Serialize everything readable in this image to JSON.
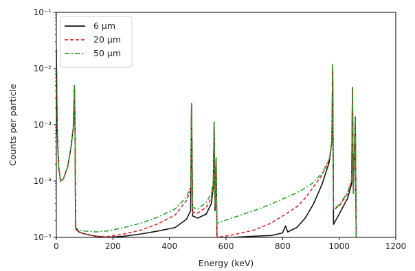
{
  "chart_data": {
    "type": "line",
    "xlabel": "Energy (keV)",
    "ylabel": "Counts per particle",
    "xlim": [
      0,
      1200
    ],
    "ylim": [
      1e-05,
      0.1
    ],
    "yscale": "log",
    "x_ticks": [
      0,
      200,
      400,
      600,
      800,
      1000,
      1200
    ],
    "x_tick_labels": [
      "0",
      "200",
      "400",
      "600",
      "800",
      "1000",
      "1200"
    ],
    "y_ticks": [
      1e-05,
      0.0001,
      0.001,
      0.01,
      0.1
    ],
    "y_tick_labels": [
      "10⁻⁵",
      "10⁻⁴",
      "10⁻³",
      "10⁻²",
      "10⁻¹"
    ],
    "legend_position": "top-left",
    "grid": false,
    "series": [
      {
        "name": "6 µm",
        "color": "#111111",
        "dash": "solid",
        "points": [
          [
            0,
            0.022
          ],
          [
            3,
            0.0009
          ],
          [
            8,
            0.00018
          ],
          [
            15,
            0.0001
          ],
          [
            25,
            0.00011
          ],
          [
            40,
            0.00018
          ],
          [
            52,
            0.0004
          ],
          [
            60,
            0.0009
          ],
          [
            64,
            0.005
          ],
          [
            66,
            0.0009
          ],
          [
            68,
            1.5e-05
          ],
          [
            80,
            1.25e-05
          ],
          [
            100,
            1.15e-05
          ],
          [
            140,
            1.05e-05
          ],
          [
            180,
            1e-05
          ],
          [
            240,
            1.05e-05
          ],
          [
            300,
            1.15e-05
          ],
          [
            360,
            1.3e-05
          ],
          [
            420,
            1.5e-05
          ],
          [
            460,
            2.1e-05
          ],
          [
            475,
            3e-05
          ],
          [
            478,
            0.0024
          ],
          [
            482,
            2.4e-05
          ],
          [
            500,
            2.2e-05
          ],
          [
            530,
            2.6e-05
          ],
          [
            548,
            4e-05
          ],
          [
            555,
            8e-05
          ],
          [
            558,
            0.0011
          ],
          [
            561,
            3e-05
          ],
          [
            565,
            0.00026
          ],
          [
            568,
            1e-05
          ],
          [
            620,
            1e-05
          ],
          [
            700,
            1.05e-05
          ],
          [
            760,
            1.08e-05
          ],
          [
            800,
            1.2e-05
          ],
          [
            810,
            1.6e-05
          ],
          [
            818,
            1.25e-05
          ],
          [
            850,
            1.5e-05
          ],
          [
            880,
            2.2e-05
          ],
          [
            910,
            4e-05
          ],
          [
            940,
            9e-05
          ],
          [
            965,
            0.00022
          ],
          [
            974,
            0.0005
          ],
          [
            977,
            0.012
          ],
          [
            980,
            1.7e-05
          ],
          [
            1000,
            2.6e-05
          ],
          [
            1030,
            5e-05
          ],
          [
            1044,
            9e-05
          ],
          [
            1047,
            0.0046
          ],
          [
            1050,
            6e-05
          ],
          [
            1057,
            0.0014
          ],
          [
            1060,
            1e-05
          ]
        ]
      },
      {
        "name": "20 µm",
        "color": "#d62728",
        "dash": "dashed",
        "points": [
          [
            0,
            0.022
          ],
          [
            3,
            0.0009
          ],
          [
            8,
            0.00018
          ],
          [
            15,
            0.0001
          ],
          [
            25,
            0.00011
          ],
          [
            40,
            0.00018
          ],
          [
            52,
            0.0004
          ],
          [
            60,
            0.0009
          ],
          [
            64,
            0.005
          ],
          [
            66,
            0.0009
          ],
          [
            68,
            1.4e-05
          ],
          [
            80,
            1.25e-05
          ],
          [
            100,
            1.15e-05
          ],
          [
            140,
            1.05e-05
          ],
          [
            180,
            1.03e-05
          ],
          [
            240,
            1.15e-05
          ],
          [
            300,
            1.35e-05
          ],
          [
            360,
            1.75e-05
          ],
          [
            420,
            2.5e-05
          ],
          [
            460,
            4.5e-05
          ],
          [
            475,
            7e-05
          ],
          [
            478,
            0.0024
          ],
          [
            482,
            2.8e-05
          ],
          [
            500,
            2.7e-05
          ],
          [
            530,
            3.4e-05
          ],
          [
            548,
            5e-05
          ],
          [
            555,
            9e-05
          ],
          [
            558,
            0.0011
          ],
          [
            561,
            3.5e-05
          ],
          [
            565,
            0.00026
          ],
          [
            568,
            1e-05
          ],
          [
            620,
            1.1e-05
          ],
          [
            700,
            1.35e-05
          ],
          [
            760,
            1.8e-05
          ],
          [
            800,
            2.4e-05
          ],
          [
            850,
            3.5e-05
          ],
          [
            880,
            5e-05
          ],
          [
            910,
            8e-05
          ],
          [
            940,
            0.00013
          ],
          [
            965,
            0.00024
          ],
          [
            974,
            0.0005
          ],
          [
            977,
            0.012
          ],
          [
            980,
            3.1e-05
          ],
          [
            1000,
            3.6e-05
          ],
          [
            1030,
            6e-05
          ],
          [
            1044,
            0.0001
          ],
          [
            1047,
            0.0046
          ],
          [
            1050,
            6e-05
          ],
          [
            1057,
            0.0014
          ],
          [
            1060,
            1e-05
          ]
        ]
      },
      {
        "name": "50 µm",
        "color": "#2ca02c",
        "dash": "dashdot",
        "points": [
          [
            0,
            0.022
          ],
          [
            3,
            0.0009
          ],
          [
            8,
            0.00018
          ],
          [
            15,
            0.0001
          ],
          [
            25,
            0.00011
          ],
          [
            40,
            0.00018
          ],
          [
            52,
            0.0004
          ],
          [
            60,
            0.0009
          ],
          [
            64,
            0.005
          ],
          [
            66,
            0.0009
          ],
          [
            68,
            1.5e-05
          ],
          [
            80,
            1.35e-05
          ],
          [
            100,
            1.3e-05
          ],
          [
            140,
            1.25e-05
          ],
          [
            180,
            1.3e-05
          ],
          [
            240,
            1.5e-05
          ],
          [
            300,
            1.8e-05
          ],
          [
            360,
            2.3e-05
          ],
          [
            420,
            3.2e-05
          ],
          [
            460,
            5.2e-05
          ],
          [
            475,
            8e-05
          ],
          [
            478,
            0.0024
          ],
          [
            482,
            3.4e-05
          ],
          [
            500,
            3.2e-05
          ],
          [
            530,
            4.2e-05
          ],
          [
            548,
            6e-05
          ],
          [
            555,
            0.0001
          ],
          [
            558,
            0.0011
          ],
          [
            561,
            4e-05
          ],
          [
            565,
            0.00026
          ],
          [
            568,
            1.8e-05
          ],
          [
            620,
            2.2e-05
          ],
          [
            700,
            3e-05
          ],
          [
            760,
            3.9e-05
          ],
          [
            800,
            4.8e-05
          ],
          [
            850,
            6.2e-05
          ],
          [
            880,
            7.5e-05
          ],
          [
            910,
            9.5e-05
          ],
          [
            940,
            0.00014
          ],
          [
            965,
            0.00025
          ],
          [
            974,
            0.0005
          ],
          [
            977,
            0.0125
          ],
          [
            980,
            3.2e-05
          ],
          [
            1000,
            3.8e-05
          ],
          [
            1030,
            6.3e-05
          ],
          [
            1044,
            0.00011
          ],
          [
            1047,
            0.0045
          ],
          [
            1050,
            6e-05
          ],
          [
            1057,
            0.0014
          ],
          [
            1060,
            1e-05
          ]
        ]
      }
    ]
  }
}
